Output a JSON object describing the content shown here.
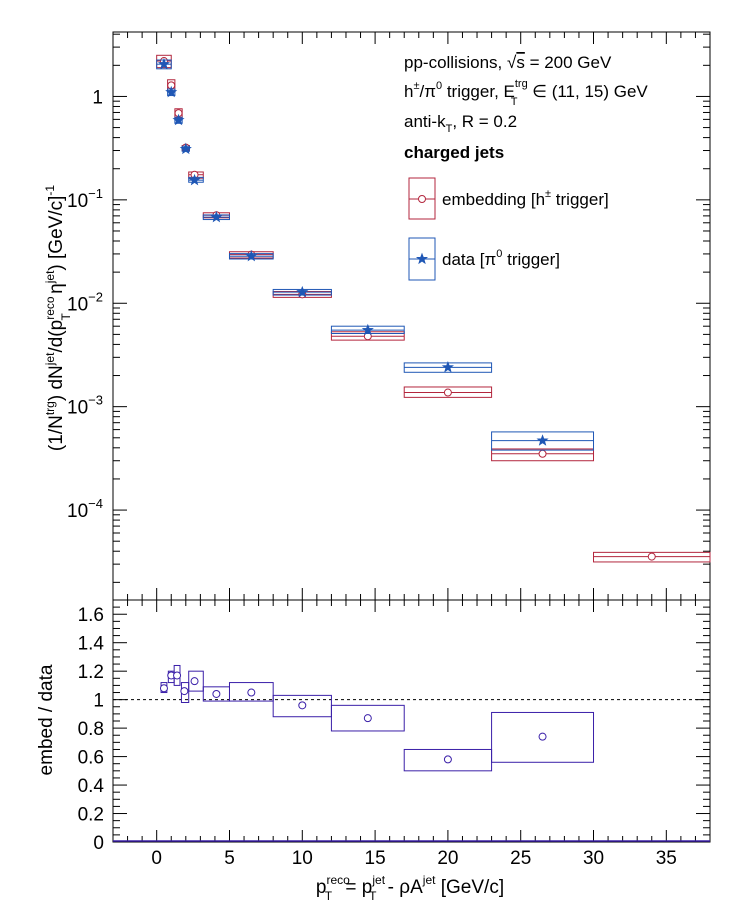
{
  "colors": {
    "embedding": "#b3263d",
    "data": "#1f57b5",
    "ratio": "#3a1fa8",
    "axis": "#000000"
  },
  "legend": {
    "lines": [
      "pp-collisions, √s = 200 GeV",
      "h±/π0 trigger, E_T^trg ∈ (11, 15) GeV",
      "anti-k_T, R = 0.2"
    ],
    "header": "charged jets",
    "embedding_label": "embedding [h± trigger]",
    "data_label": "data [π0 trigger]"
  },
  "chart_data": [
    {
      "type": "scatter",
      "panel": "top",
      "ylabel": "(1/N^trg) dN^jet/d(p_T^reco η^jet) [GeV/c]^-1",
      "yscale": "log",
      "xlim": [
        -3,
        38
      ],
      "ylim": [
        1.35e-05,
        4.2
      ],
      "ytick_labels": [
        "10^-4",
        "10^-3",
        "10^-2",
        "10^-1",
        "1"
      ],
      "series": [
        {
          "name": "embedding [h± trigger]",
          "marker": "open-circle",
          "points": [
            {
              "x": 0.5,
              "y": 2.2,
              "sys": [
                0.0,
                1.0,
                1.9,
                2.5
              ]
            },
            {
              "x": 1.0,
              "y": 1.28,
              "sys": [
                0.75,
                1.25,
                1.12,
                1.45
              ]
            },
            {
              "x": 1.5,
              "y": 0.69,
              "sys": [
                1.25,
                1.75,
                0.62,
                0.76
              ]
            },
            {
              "x": 2.0,
              "y": 0.32,
              "sys": [
                1.75,
                2.25,
                0.3,
                0.335
              ]
            },
            {
              "x": 2.6,
              "y": 0.175,
              "sys": [
                2.2,
                3.2,
                0.162,
                0.186
              ]
            },
            {
              "x": 4.1,
              "y": 0.071,
              "sys": [
                3.2,
                5.0,
                0.067,
                0.075
              ]
            },
            {
              "x": 6.5,
              "y": 0.0295,
              "sys": [
                5.0,
                8.0,
                0.0274,
                0.0315
              ]
            },
            {
              "x": 10.0,
              "y": 0.0122,
              "sys": [
                8.0,
                12.0,
                0.0114,
                0.013
              ]
            },
            {
              "x": 14.5,
              "y": 0.0048,
              "sys": [
                12.0,
                17.0,
                0.0044,
                0.0053
              ]
            },
            {
              "x": 20.0,
              "y": 0.00137,
              "sys": [
                17.0,
                23.0,
                0.00123,
                0.00155
              ]
            },
            {
              "x": 26.5,
              "y": 0.00035,
              "sys": [
                23.0,
                30.0,
                0.0003,
                0.00039
              ]
            },
            {
              "x": 34.0,
              "y": 3.55e-05,
              "sys": [
                30.0,
                38.0,
                3.15e-05,
                3.9e-05
              ]
            }
          ]
        },
        {
          "name": "data [π0 trigger]",
          "marker": "filled-star",
          "points": [
            {
              "x": 0.5,
              "y": 2.05,
              "sys": [
                0.0,
                1.0,
                1.85,
                2.25
              ]
            },
            {
              "x": 1.0,
              "y": 1.1,
              "sys": [
                0.75,
                1.25,
                1.02,
                1.18
              ]
            },
            {
              "x": 1.5,
              "y": 0.59,
              "sys": [
                1.25,
                1.75,
                0.55,
                0.63
              ]
            },
            {
              "x": 2.0,
              "y": 0.31,
              "sys": [
                1.75,
                2.25,
                0.295,
                0.33
              ]
            },
            {
              "x": 2.6,
              "y": 0.155,
              "sys": [
                2.2,
                3.2,
                0.148,
                0.165
              ]
            },
            {
              "x": 4.1,
              "y": 0.068,
              "sys": [
                3.2,
                5.0,
                0.0645,
                0.0715
              ]
            },
            {
              "x": 6.5,
              "y": 0.0285,
              "sys": [
                5.0,
                8.0,
                0.0268,
                0.0302
              ]
            },
            {
              "x": 10.0,
              "y": 0.0128,
              "sys": [
                8.0,
                12.0,
                0.012,
                0.0136
              ]
            },
            {
              "x": 14.5,
              "y": 0.0055,
              "sys": [
                12.0,
                17.0,
                0.0051,
                0.006
              ]
            },
            {
              "x": 20.0,
              "y": 0.0024,
              "sys": [
                17.0,
                23.0,
                0.00215,
                0.00265
              ]
            },
            {
              "x": 26.5,
              "y": 0.00047,
              "sys": [
                23.0,
                30.0,
                0.00038,
                0.00057
              ]
            }
          ]
        }
      ]
    },
    {
      "type": "scatter",
      "panel": "bottom",
      "xlabel": "p_T^reco = p_T^jet - ρA^jet [GeV/c]",
      "ylabel": "embed / data",
      "xlim": [
        -3,
        38
      ],
      "ylim": [
        0,
        1.7
      ],
      "reference_line": 1,
      "x_ticks": [
        0,
        5,
        10,
        15,
        20,
        25,
        30,
        35
      ],
      "y_ticks": [
        0,
        0.2,
        0.4,
        0.6,
        0.8,
        1,
        1.2,
        1.4,
        1.6
      ],
      "series": [
        {
          "name": "embed / data",
          "marker": "open-circle",
          "points": [
            {
              "x": 0.5,
              "y": 1.08,
              "sys": [
                0.3,
                0.7,
                1.05,
                1.12
              ]
            },
            {
              "x": 1.0,
              "y": 1.17,
              "sys": [
                0.8,
                1.2,
                1.12,
                1.2
              ]
            },
            {
              "x": 1.4,
              "y": 1.17,
              "sys": [
                1.2,
                1.6,
                1.1,
                1.24
              ]
            },
            {
              "x": 1.9,
              "y": 1.06,
              "sys": [
                1.7,
                2.2,
                0.98,
                1.12
              ]
            },
            {
              "x": 2.6,
              "y": 1.13,
              "sys": [
                2.2,
                3.2,
                1.06,
                1.2
              ]
            },
            {
              "x": 4.1,
              "y": 1.04,
              "sys": [
                3.2,
                5.0,
                0.99,
                1.09
              ]
            },
            {
              "x": 6.5,
              "y": 1.05,
              "sys": [
                5.0,
                8.0,
                0.99,
                1.12
              ]
            },
            {
              "x": 10.0,
              "y": 0.96,
              "sys": [
                8.0,
                12.0,
                0.88,
                1.03
              ]
            },
            {
              "x": 14.5,
              "y": 0.87,
              "sys": [
                12.0,
                17.0,
                0.78,
                0.96
              ]
            },
            {
              "x": 20.0,
              "y": 0.58,
              "sys": [
                17.0,
                23.0,
                0.5,
                0.65
              ]
            },
            {
              "x": 26.5,
              "y": 0.74,
              "sys": [
                23.0,
                30.0,
                0.56,
                0.91
              ]
            }
          ]
        }
      ]
    }
  ]
}
